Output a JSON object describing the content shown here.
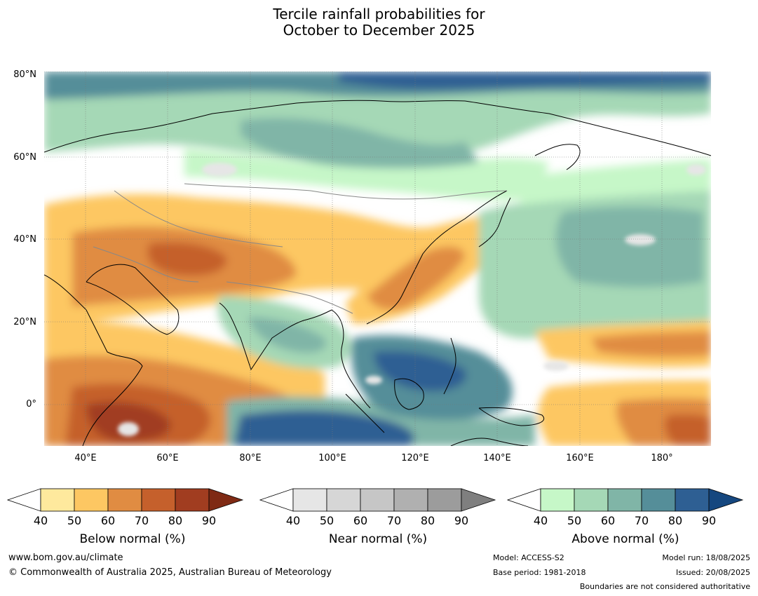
{
  "title_line1": "Tercile rainfall probabilities for",
  "title_line2": "October to December 2025",
  "lat_labels": [
    "80°N",
    "60°N",
    "40°N",
    "20°N",
    "0°"
  ],
  "lon_labels": [
    "40°E",
    "60°E",
    "80°E",
    "100°E",
    "120°E",
    "140°E",
    "160°E",
    "180°"
  ],
  "colorbars": [
    {
      "name": "below",
      "title": "Below normal (%)",
      "ticks": [
        "40",
        "50",
        "60",
        "70",
        "80",
        "90"
      ],
      "colors": [
        "#ffffff",
        "#fee99d",
        "#fdc762",
        "#e08c42",
        "#c5602c",
        "#a13d20",
        "#7f2a14"
      ],
      "extend": "both"
    },
    {
      "name": "near",
      "title": "Near normal (%)",
      "ticks": [
        "40",
        "50",
        "60",
        "70",
        "80",
        "90"
      ],
      "colors": [
        "#ffffff",
        "#e6e6e6",
        "#d6d6d6",
        "#c6c6c6",
        "#b0b0b0",
        "#9c9c9c",
        "#7f7f7f"
      ],
      "extend": "both"
    },
    {
      "name": "above",
      "title": "Above normal (%)",
      "ticks": [
        "40",
        "50",
        "60",
        "70",
        "80",
        "90"
      ],
      "colors": [
        "#ffffff",
        "#c6f7c8",
        "#a5d8b6",
        "#80b5a7",
        "#558e99",
        "#2e5f93",
        "#15477f"
      ],
      "extend": "both"
    }
  ],
  "footer": {
    "website": "www.bom.gov.au/climate",
    "copyright": "© Commonwealth of Australia 2025, Australian Bureau of Meteorology",
    "model": "Model: ACCESS-S2",
    "base_period": "Base period: 1981-2018",
    "model_run": "Model run: 18/08/2025",
    "issued": "Issued: 20/08/2025",
    "disclaimer": "Boundaries are not considered authoritative"
  }
}
